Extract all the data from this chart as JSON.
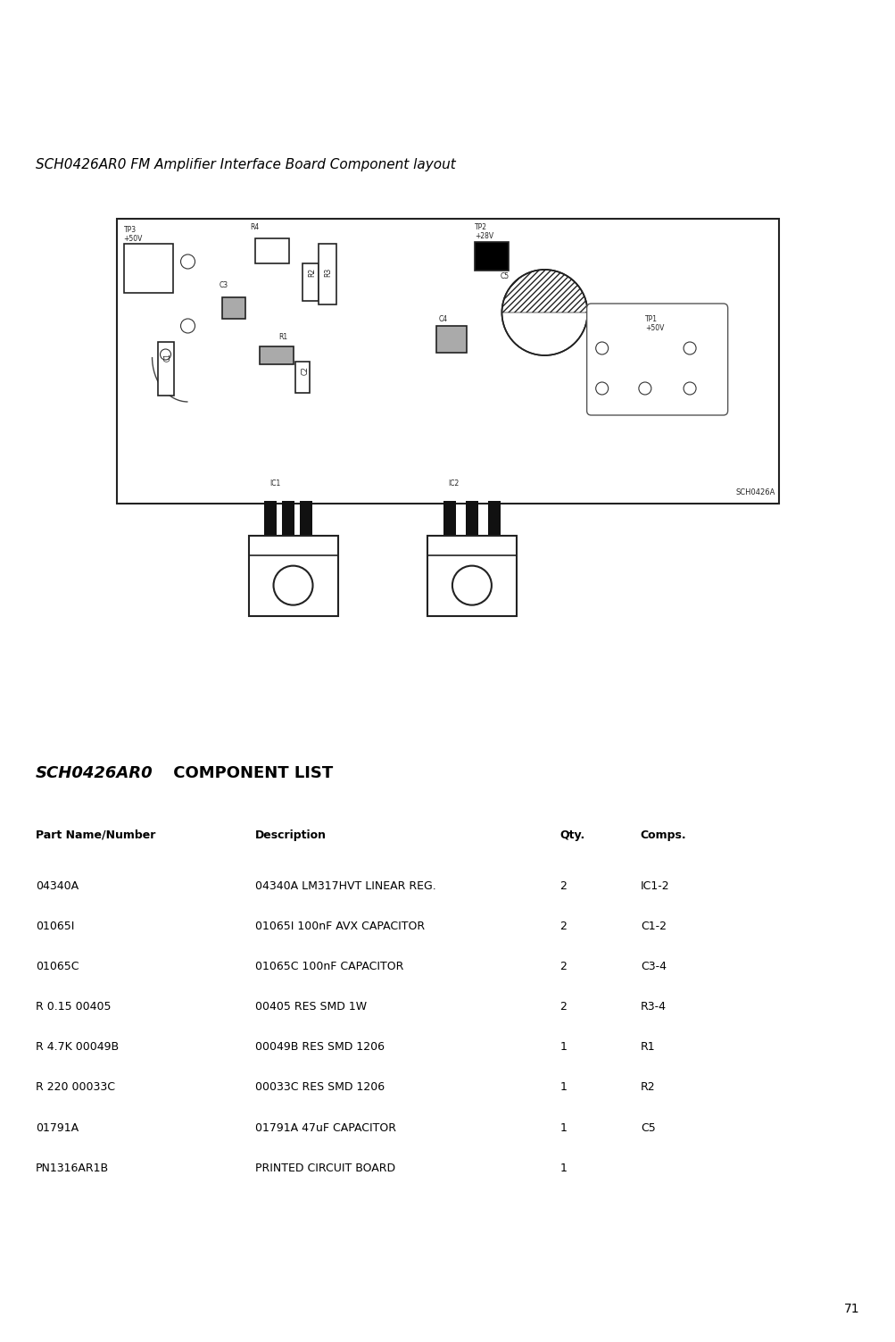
{
  "page_title": "SCH0426AR0 FM Amplifier Interface Board Component layout",
  "section_title_italic": "SCH0426AR0",
  "section_title_normal": " COMPONENT LIST",
  "table_header": [
    "Part Name/Number",
    "Description",
    "Qty.",
    "Comps."
  ],
  "table_rows": [
    [
      "04340A",
      "04340A LM317HVT LINEAR REG.",
      "2",
      "IC1-2"
    ],
    [
      "01065I",
      "01065I 100nF AVX CAPACITOR",
      "2",
      "C1-2"
    ],
    [
      "01065C",
      "01065C 100nF CAPACITOR",
      "2",
      "C3-4"
    ],
    [
      "R 0.15 00405",
      "00405 RES SMD 1W",
      "2",
      "R3-4"
    ],
    [
      "R 4.7K 00049B",
      "00049B RES SMD 1206",
      "1",
      "R1"
    ],
    [
      "R 220 00033C",
      "00033C RES SMD 1206",
      "1",
      "R2"
    ],
    [
      "01791A",
      "01791A 47uF CAPACITOR",
      "1",
      "C5"
    ],
    [
      "PN1316AR1B",
      "PRINTED CIRCUIT BOARD",
      "1",
      ""
    ]
  ],
  "bg_color": "#ffffff",
  "text_color": "#000000",
  "page_number": "71"
}
